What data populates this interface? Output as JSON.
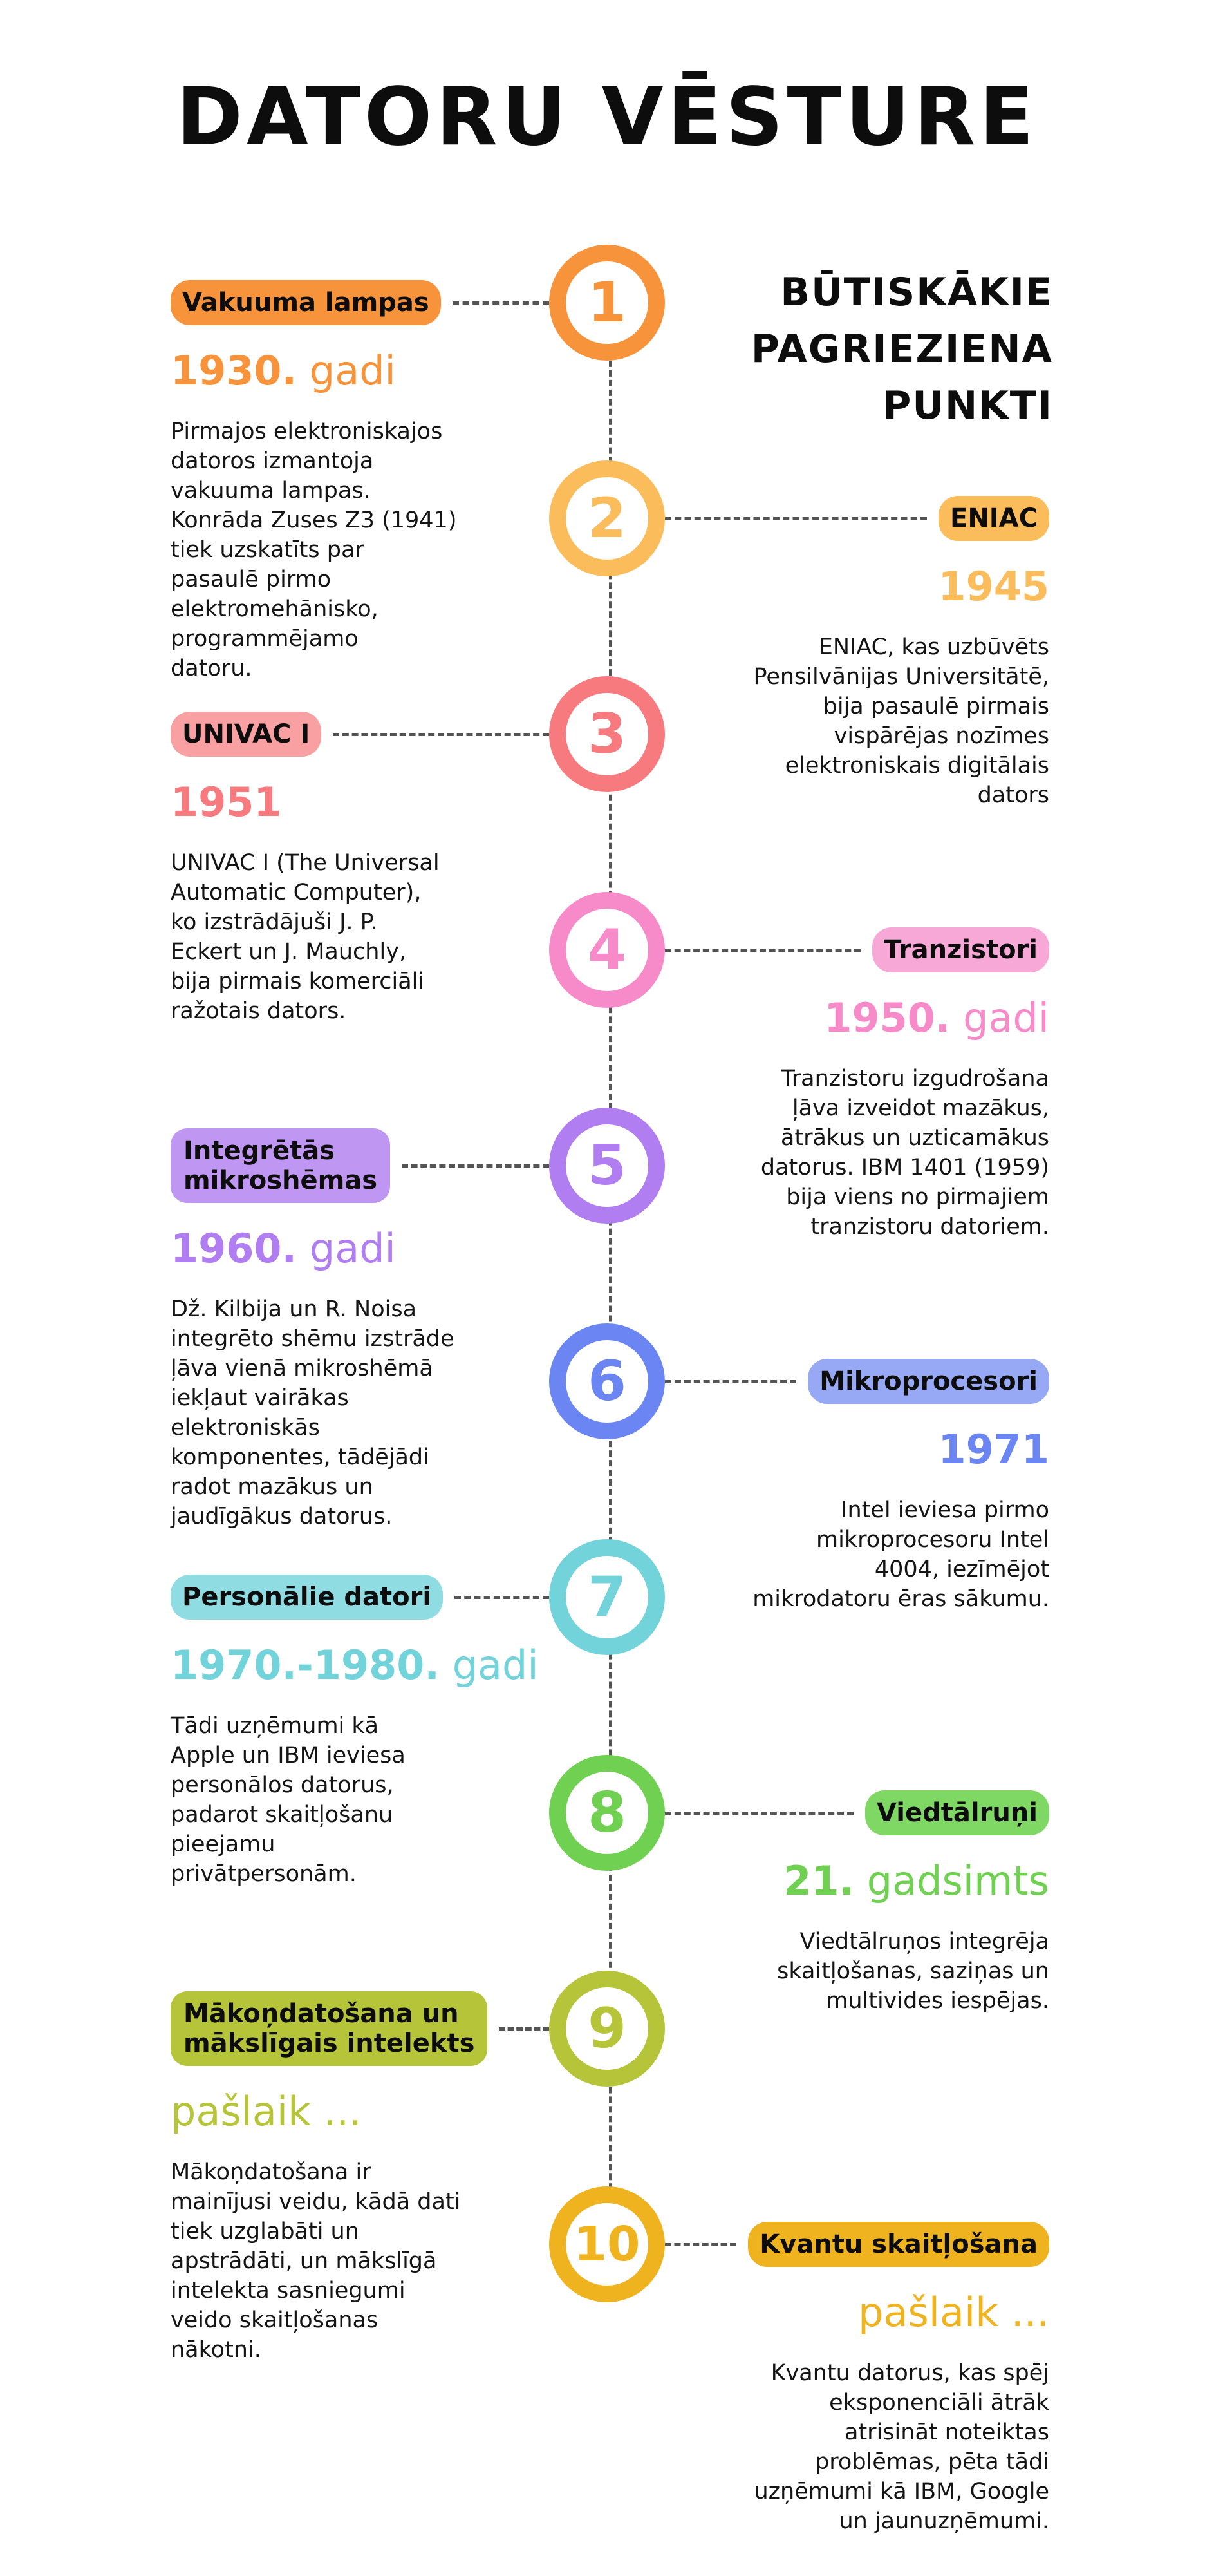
{
  "title": "DATORU VĒSTURE",
  "subtitle": [
    "BŪTISKĀKIE",
    "PAGRIEZIENA",
    "PUNKTI"
  ],
  "milestones": [
    {
      "number": "1",
      "label": [
        "Vakuuma lampas"
      ],
      "year_bold": "1930.",
      "year_light": "gadi",
      "lines": [
        "Pirmajos elektroniskajos",
        "datoros izmantoja",
        "vakuuma lampas.",
        "Konrāda Zuses Z3 (1941)",
        "tiek uzskatīts par",
        "pasaulē pirmo",
        "elektromehānisko,",
        "programmējamo",
        "datoru."
      ],
      "color": "#f7943b",
      "pill_color": "#f7943b"
    },
    {
      "number": "2",
      "label": [
        "ENIAC"
      ],
      "year_bold": "1945",
      "year_light": "",
      "lines": [
        "ENIAC, kas uzbūvēts",
        "Pensilvānijas Universitātē,",
        "bija pasaulē pirmais",
        "vispārējas nozīmes",
        "elektroniskais digitālais",
        "dators"
      ],
      "color": "#fbbd5b",
      "pill_color": "#fbbd5b"
    },
    {
      "number": "3",
      "label": [
        "UNIVAC I"
      ],
      "year_bold": "1951",
      "year_light": "",
      "lines": [
        "UNIVAC I (The Universal",
        "Automatic Computer),",
        "ko izstrādājuši J. P.",
        "Eckert un J. Mauchly,",
        "bija pirmais komerciāli",
        "ražotais dators."
      ],
      "color": "#f77a7e",
      "pill_color": "#f8a0a2"
    },
    {
      "number": "4",
      "label": [
        "Tranzistori"
      ],
      "year_bold": "1950.",
      "year_light": "gadi",
      "lines": [
        "Tranzistoru izgudrošana",
        "ļāva izveidot mazākus,",
        "ātrākus un uzticamākus",
        "datorus. IBM 1401 (1959)",
        "bija viens no pirmajiem",
        "tranzistoru datoriem."
      ],
      "color": "#f78ac9",
      "pill_color": "#f7a8d6"
    },
    {
      "number": "5",
      "label": [
        "Integrētās",
        "mikroshēmas"
      ],
      "year_bold": "1960.",
      "year_light": "gadi",
      "lines": [
        "Dž. Kilbija un R. Noisa",
        "integrēto shēmu izstrāde",
        "ļāva vienā mikroshēmā",
        "iekļaut vairākas",
        "elektroniskās",
        "komponentes, tādējādi",
        "radot mazākus un",
        "jaudīgākus datorus."
      ],
      "color": "#b07ef0",
      "pill_color": "#bf96f2"
    },
    {
      "number": "6",
      "label": [
        "Mikroprocesori"
      ],
      "year_bold": "1971",
      "year_light": "",
      "lines": [
        "Intel ieviesa pirmo",
        "mikroprocesoru Intel",
        "4004, iezīmējot",
        "mikrodatoru ēras sākumu."
      ],
      "color": "#6b86f2",
      "pill_color": "#97a9f5"
    },
    {
      "number": "7",
      "label": [
        "Personālie datori"
      ],
      "year_bold": "1970.-1980.",
      "year_light": "gadi",
      "lines": [
        "Tādi uzņēmumi kā",
        "Apple un IBM ieviesa",
        "personālos datorus,",
        "padarot skaitļošanu",
        "pieejamu",
        "privātpersonām."
      ],
      "color": "#72d3da",
      "pill_color": "#8fdde2"
    },
    {
      "number": "8",
      "label": [
        "Viedtālruņi"
      ],
      "year_bold": "21.",
      "year_light": "gadsimts",
      "lines": [
        "Viedtālruņos integrēja",
        "skaitļošanas, saziņas un",
        "multivides iespējas."
      ],
      "color": "#6fd052",
      "pill_color": "#7fd863"
    },
    {
      "number": "9",
      "label": [
        "Mākoņdatošana un",
        "mākslīgais intelekts"
      ],
      "year_bold": "",
      "year_light": "pašlaik ...",
      "lines": [
        "Mākoņdatošana ir",
        "mainījusi veidu, kādā dati",
        "tiek uzglabāti un",
        "apstrādāti, un mākslīgā",
        "intelekta sasniegumi",
        "veido skaitļošanas",
        "nākotni."
      ],
      "color": "#b6c43a",
      "pill_color": "#b6c43a"
    },
    {
      "number": "10",
      "label": [
        "Kvantu skaitļošana"
      ],
      "year_bold": "",
      "year_light": "pašlaik ...",
      "lines": [
        "Kvantu datorus, kas spēj",
        "eksponenciāli ātrāk",
        "atrisināt noteiktas",
        "problēmas, pēta tādi",
        "uzņēmumi kā IBM, Google",
        "un jaunuzņēmumi."
      ],
      "color": "#f0b320",
      "pill_color": "#f0b320"
    }
  ]
}
